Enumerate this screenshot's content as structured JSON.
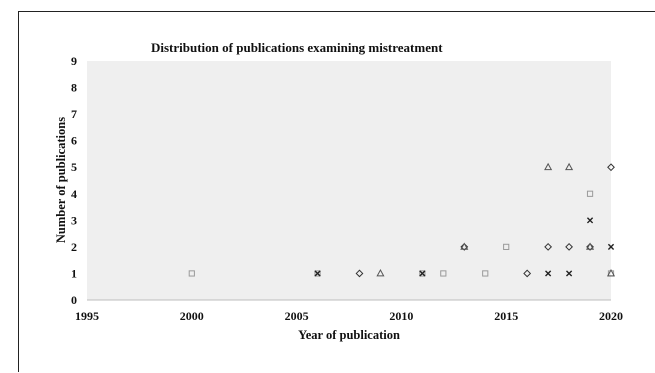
{
  "chart_data": {
    "type": "scatter",
    "title": "Distribution of publications examining mistreatment",
    "xlabel": "Year of publication",
    "ylabel": "Number of publications",
    "xlim": [
      1995,
      2020
    ],
    "ylim": [
      0,
      9
    ],
    "xticks": [
      1995,
      2000,
      2005,
      2010,
      2015,
      2020
    ],
    "yticks": [
      0,
      1,
      2,
      3,
      4,
      5,
      6,
      7,
      8,
      9
    ],
    "plot_background": "#efefef",
    "grid": false,
    "legend": "none",
    "series": [
      {
        "marker": "square",
        "color": "#9a9a9a",
        "points": [
          {
            "x": 2000,
            "y": 1
          },
          {
            "x": 2006,
            "y": 1
          },
          {
            "x": 2011,
            "y": 1
          },
          {
            "x": 2012,
            "y": 1
          },
          {
            "x": 2014,
            "y": 1
          },
          {
            "x": 2015,
            "y": 2
          },
          {
            "x": 2019,
            "y": 4
          },
          {
            "x": 2020,
            "y": 1
          }
        ]
      },
      {
        "marker": "diamond",
        "color": "#333333",
        "points": [
          {
            "x": 2008,
            "y": 1
          },
          {
            "x": 2013,
            "y": 2
          },
          {
            "x": 2016,
            "y": 1
          },
          {
            "x": 2017,
            "y": 2
          },
          {
            "x": 2018,
            "y": 2
          },
          {
            "x": 2019,
            "y": 2
          },
          {
            "x": 2020,
            "y": 5
          }
        ]
      },
      {
        "marker": "triangle",
        "color": "#555555",
        "points": [
          {
            "x": 2009,
            "y": 1
          },
          {
            "x": 2013,
            "y": 2
          },
          {
            "x": 2017,
            "y": 5
          },
          {
            "x": 2018,
            "y": 5
          },
          {
            "x": 2019,
            "y": 2
          },
          {
            "x": 2020,
            "y": 1
          }
        ]
      },
      {
        "marker": "x",
        "color": "#222222",
        "points": [
          {
            "x": 2006,
            "y": 1
          },
          {
            "x": 2011,
            "y": 1
          },
          {
            "x": 2017,
            "y": 1
          },
          {
            "x": 2018,
            "y": 1
          },
          {
            "x": 2019,
            "y": 3
          },
          {
            "x": 2020,
            "y": 2
          }
        ]
      }
    ]
  }
}
